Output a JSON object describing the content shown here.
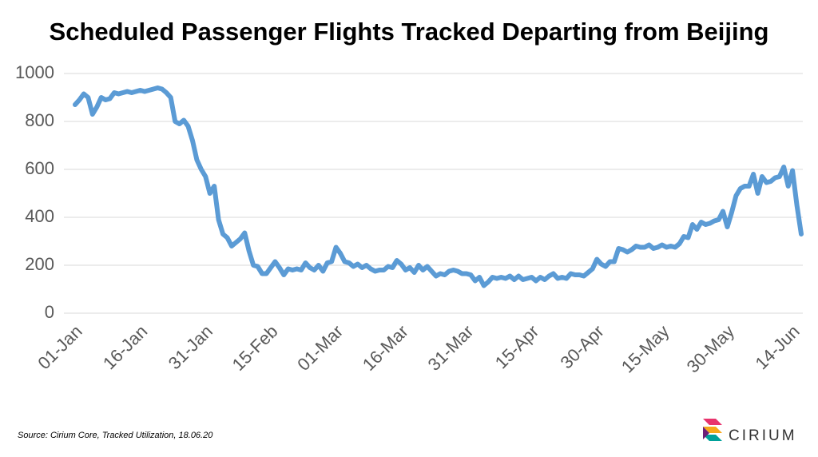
{
  "chart_data": {
    "type": "line",
    "title": "Scheduled Passenger Flights Tracked Departing from Beijing",
    "source": "Source: Cirium Core, Tracked Utilization, 18.06.20",
    "logo": "CIRIUM",
    "categories": [
      "01-Jan",
      null,
      null,
      null,
      null,
      null,
      null,
      null,
      null,
      null,
      null,
      null,
      null,
      null,
      null,
      "16-Jan",
      null,
      null,
      null,
      null,
      null,
      null,
      null,
      null,
      null,
      null,
      null,
      null,
      null,
      null,
      "31-Jan",
      null,
      null,
      null,
      null,
      null,
      null,
      null,
      null,
      null,
      null,
      null,
      null,
      null,
      null,
      "15-Feb",
      null,
      null,
      null,
      null,
      null,
      null,
      null,
      null,
      null,
      null,
      null,
      null,
      null,
      null,
      "01-Mar",
      null,
      null,
      null,
      null,
      null,
      null,
      null,
      null,
      null,
      null,
      null,
      null,
      null,
      null,
      "16-Mar",
      null,
      null,
      null,
      null,
      null,
      null,
      null,
      null,
      null,
      null,
      null,
      null,
      null,
      null,
      "31-Mar",
      null,
      null,
      null,
      null,
      null,
      null,
      null,
      null,
      null,
      null,
      null,
      null,
      null,
      null,
      "15-Apr",
      null,
      null,
      null,
      null,
      null,
      null,
      null,
      null,
      null,
      null,
      null,
      null,
      null,
      null,
      "30-Apr",
      null,
      null,
      null,
      null,
      null,
      null,
      null,
      null,
      null,
      null,
      null,
      null,
      null,
      null,
      "15-May",
      null,
      null,
      null,
      null,
      null,
      null,
      null,
      null,
      null,
      null,
      null,
      null,
      null,
      null,
      "30-May",
      null,
      null,
      null,
      null,
      null,
      null,
      null,
      null,
      null,
      null,
      null,
      null,
      null,
      null,
      "14-Jun",
      null,
      null
    ],
    "series": [
      {
        "name": "Flights",
        "color": "#5b9bd5",
        "values": [
          870,
          890,
          915,
          900,
          830,
          860,
          900,
          890,
          895,
          920,
          915,
          920,
          925,
          920,
          925,
          930,
          925,
          930,
          935,
          940,
          935,
          920,
          900,
          800,
          790,
          805,
          780,
          720,
          640,
          600,
          570,
          500,
          530,
          390,
          330,
          315,
          280,
          295,
          310,
          335,
          260,
          200,
          195,
          165,
          165,
          190,
          215,
          190,
          160,
          185,
          180,
          185,
          180,
          210,
          190,
          180,
          200,
          175,
          210,
          215,
          275,
          250,
          215,
          210,
          195,
          205,
          190,
          200,
          185,
          175,
          180,
          180,
          195,
          190,
          220,
          205,
          180,
          190,
          170,
          200,
          180,
          195,
          175,
          155,
          165,
          160,
          175,
          180,
          175,
          165,
          165,
          160,
          135,
          150,
          115,
          130,
          150,
          145,
          150,
          145,
          155,
          140,
          155,
          140,
          145,
          150,
          135,
          150,
          140,
          155,
          165,
          145,
          150,
          145,
          165,
          160,
          160,
          155,
          170,
          185,
          225,
          205,
          195,
          215,
          215,
          270,
          265,
          255,
          265,
          280,
          275,
          275,
          285,
          270,
          275,
          285,
          275,
          280,
          275,
          290,
          320,
          315,
          370,
          350,
          380,
          370,
          375,
          385,
          390,
          425,
          360,
          420,
          490,
          520,
          530,
          530,
          580,
          500,
          570,
          545,
          550,
          565,
          570,
          610,
          530,
          595,
          450,
          330
        ]
      }
    ],
    "ylim": [
      0,
      1000
    ],
    "yticks": [
      0,
      200,
      400,
      600,
      800,
      1000
    ],
    "grid": true
  }
}
